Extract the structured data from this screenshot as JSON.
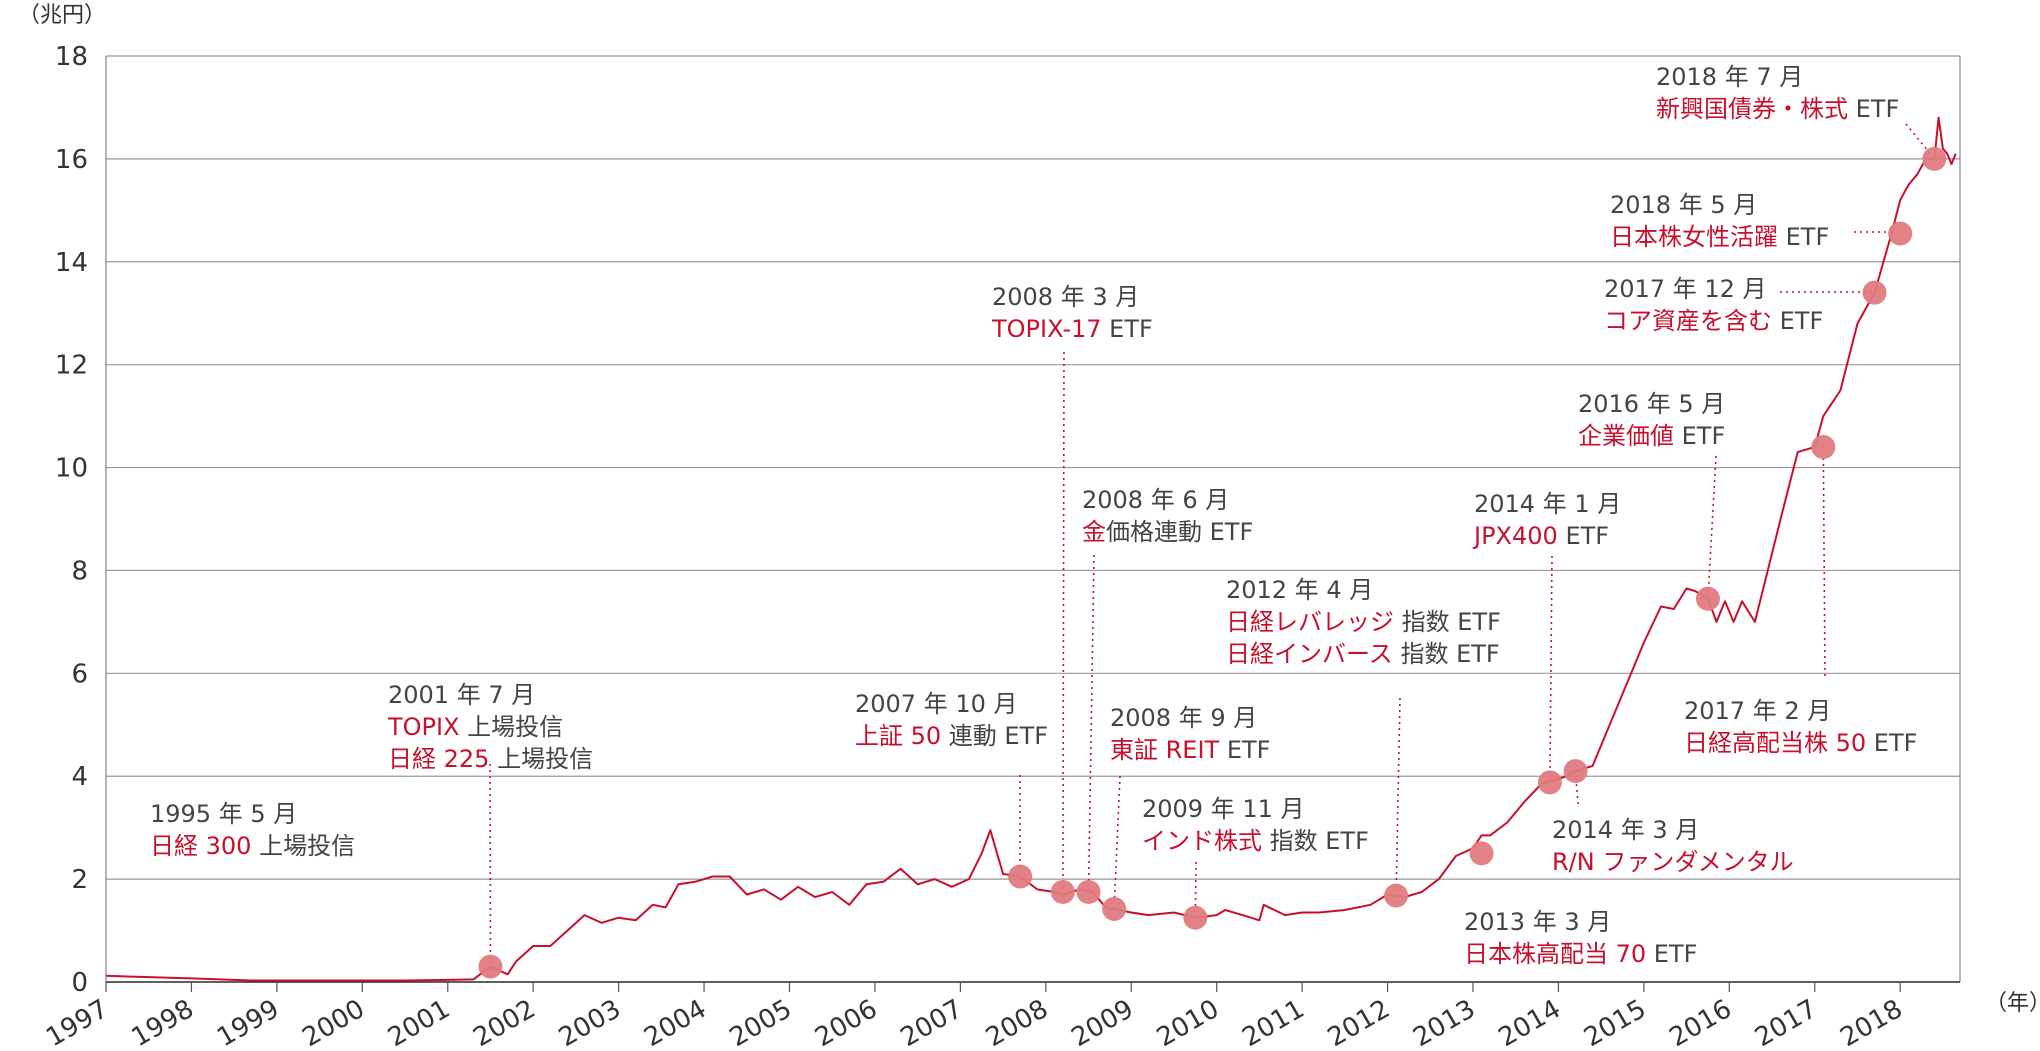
{
  "chart_data": {
    "type": "line",
    "y_unit": "（兆円）",
    "x_unit": "（年）",
    "ylim": [
      0,
      18
    ],
    "yticks": [
      0,
      2,
      4,
      6,
      8,
      10,
      12,
      14,
      16,
      18
    ],
    "xlim": [
      1997,
      2018.7
    ],
    "xticks": [
      "1997",
      "1998",
      "1999",
      "2000",
      "2001",
      "2002",
      "2003",
      "2004",
      "2005",
      "2006",
      "2007",
      "2008",
      "2009",
      "2010",
      "2011",
      "2012",
      "2013",
      "2014",
      "2015",
      "2016",
      "2017",
      "2018"
    ],
    "grid": "horizontal",
    "colors": {
      "line": "#c8102e",
      "marker": "#e07a80",
      "accent": "#c8102e",
      "text": "#444444",
      "grid": "#999999"
    },
    "series": [
      {
        "x": [
          1997.0,
          1998.0,
          1998.7,
          1999.5,
          2000.5,
          2001.0,
          2001.3,
          2001.5,
          2001.7,
          2001.8,
          2002.0,
          2002.2,
          2002.4,
          2002.6,
          2002.8,
          2003.0,
          2003.2,
          2003.4,
          2003.55,
          2003.7,
          2003.9,
          2004.1,
          2004.3,
          2004.5,
          2004.7,
          2004.9,
          2005.1,
          2005.3,
          2005.5,
          2005.7,
          2005.9,
          2006.1,
          2006.3,
          2006.5,
          2006.7,
          2006.9,
          2007.1,
          2007.25,
          2007.35,
          2007.5,
          2007.7,
          2007.9,
          2008.1,
          2008.2,
          2008.4,
          2008.55,
          2008.7,
          2008.85,
          2009.0,
          2009.2,
          2009.5,
          2009.75,
          2010.0,
          2010.1,
          2010.3,
          2010.5,
          2010.55,
          2010.8,
          2011.0,
          2011.2,
          2011.5,
          2011.8,
          2012.0,
          2012.2,
          2012.4,
          2012.6,
          2012.8,
          2013.0,
          2013.1,
          2013.2,
          2013.4,
          2013.6,
          2013.8,
          2013.9,
          2014.1,
          2014.2,
          2014.4,
          2014.6,
          2014.8,
          2015.0,
          2015.2,
          2015.35,
          2015.5,
          2015.6,
          2015.75,
          2015.85,
          2015.95,
          2016.05,
          2016.15,
          2016.3,
          2016.45,
          2016.6,
          2016.8,
          2017.0,
          2017.1,
          2017.3,
          2017.5,
          2017.7,
          2017.9,
          2018.0,
          2018.1,
          2018.2,
          2018.3,
          2018.4,
          2018.45,
          2018.5,
          2018.55,
          2018.6,
          2018.65
        ],
        "y": [
          0.12,
          0.07,
          0.03,
          0.03,
          0.03,
          0.04,
          0.05,
          0.3,
          0.15,
          0.4,
          0.7,
          0.7,
          1.0,
          1.3,
          1.15,
          1.25,
          1.2,
          1.5,
          1.45,
          1.9,
          1.95,
          2.05,
          2.05,
          1.7,
          1.8,
          1.6,
          1.85,
          1.65,
          1.75,
          1.5,
          1.9,
          1.95,
          2.2,
          1.9,
          2.0,
          1.85,
          2.0,
          2.5,
          2.95,
          2.1,
          2.05,
          1.8,
          1.75,
          1.7,
          1.8,
          1.75,
          1.45,
          1.4,
          1.35,
          1.3,
          1.35,
          1.25,
          1.3,
          1.4,
          1.3,
          1.2,
          1.5,
          1.3,
          1.35,
          1.35,
          1.4,
          1.5,
          1.7,
          1.65,
          1.75,
          2.0,
          2.45,
          2.6,
          2.85,
          2.85,
          3.1,
          3.5,
          3.85,
          3.9,
          4.0,
          4.1,
          4.2,
          5.0,
          5.8,
          6.6,
          7.3,
          7.25,
          7.65,
          7.6,
          7.45,
          7.0,
          7.4,
          7.0,
          7.4,
          7.0,
          8.0,
          9.0,
          10.3,
          10.4,
          11.0,
          11.5,
          12.8,
          13.4,
          14.55,
          15.2,
          15.5,
          15.7,
          16.0,
          16.0,
          16.8,
          16.2,
          16.1,
          15.9,
          16.1
        ]
      }
    ],
    "markers": [
      {
        "x": 2001.5,
        "y": 0.3
      },
      {
        "x": 2007.7,
        "y": 2.05
      },
      {
        "x": 2008.2,
        "y": 1.75
      },
      {
        "x": 2008.5,
        "y": 1.75
      },
      {
        "x": 2008.8,
        "y": 1.42
      },
      {
        "x": 2009.75,
        "y": 1.25
      },
      {
        "x": 2012.1,
        "y": 1.68
      },
      {
        "x": 2013.1,
        "y": 2.5
      },
      {
        "x": 2013.9,
        "y": 3.88
      },
      {
        "x": 2014.2,
        "y": 4.1
      },
      {
        "x": 2015.75,
        "y": 7.45
      },
      {
        "x": 2017.1,
        "y": 10.4
      },
      {
        "x": 2017.7,
        "y": 13.4
      },
      {
        "x": 2018.0,
        "y": 14.55
      },
      {
        "x": 2018.4,
        "y": 16.0
      }
    ],
    "annotations": [
      {
        "date": "1995 年 5 月",
        "lines": [
          [
            {
              "t": "日経 300",
              "red": true
            },
            {
              "t": " 上場投信",
              "red": false
            }
          ]
        ]
      },
      {
        "date": "2001 年 7 月",
        "lines": [
          [
            {
              "t": "TOPIX",
              "red": true
            },
            {
              "t": " 上場投信",
              "red": false
            }
          ],
          [
            {
              "t": "日経 225",
              "red": true
            },
            {
              "t": " 上場投信",
              "red": false
            }
          ]
        ]
      },
      {
        "date": "2007 年 10 月",
        "lines": [
          [
            {
              "t": "上証 50",
              "red": true
            },
            {
              "t": " 連動 ETF",
              "red": false
            }
          ]
        ]
      },
      {
        "date": "2008 年 3 月",
        "lines": [
          [
            {
              "t": "TOPIX-17",
              "red": true
            },
            {
              "t": " ETF",
              "red": false
            }
          ]
        ]
      },
      {
        "date": "2008 年 6 月",
        "lines": [
          [
            {
              "t": "金",
              "red": true
            },
            {
              "t": "価格連動 ETF",
              "red": false
            }
          ]
        ]
      },
      {
        "date": "2008 年 9 月",
        "lines": [
          [
            {
              "t": "東証 REIT",
              "red": true
            },
            {
              "t": " ETF",
              "red": false
            }
          ]
        ]
      },
      {
        "date": "2009 年 11 月",
        "lines": [
          [
            {
              "t": "インド株式",
              "red": true
            },
            {
              "t": " 指数 ETF",
              "red": false
            }
          ]
        ]
      },
      {
        "date": "2012 年 4 月",
        "lines": [
          [
            {
              "t": "日経レバレッジ",
              "red": true
            },
            {
              "t": " 指数 ETF",
              "red": false
            }
          ],
          [
            {
              "t": "日経インバース",
              "red": true
            },
            {
              "t": " 指数 ETF",
              "red": false
            }
          ]
        ]
      },
      {
        "date": "2013 年 3 月",
        "lines": [
          [
            {
              "t": "日本株高配当 70",
              "red": true
            },
            {
              "t": " ETF",
              "red": false
            }
          ]
        ]
      },
      {
        "date": "2014 年 1 月",
        "lines": [
          [
            {
              "t": "JPX400",
              "red": true
            },
            {
              "t": " ETF",
              "red": false
            }
          ]
        ]
      },
      {
        "date": "2014 年 3 月",
        "lines": [
          [
            {
              "t": "R/N ファンダメンタル",
              "red": true
            }
          ]
        ]
      },
      {
        "date": "2016 年 5 月",
        "lines": [
          [
            {
              "t": "企業価値",
              "red": true
            },
            {
              "t": " ETF",
              "red": false
            }
          ]
        ]
      },
      {
        "date": "2017 年 2 月",
        "lines": [
          [
            {
              "t": "日経高配当株 50",
              "red": true
            },
            {
              "t": " ETF",
              "red": false
            }
          ]
        ]
      },
      {
        "date": "2017 年 12 月",
        "lines": [
          [
            {
              "t": "コア資産を含む",
              "red": true
            },
            {
              "t": " ETF",
              "red": false
            }
          ]
        ]
      },
      {
        "date": "2018 年 5 月",
        "lines": [
          [
            {
              "t": "日本株女性活躍",
              "red": true
            },
            {
              "t": " ETF",
              "red": false
            }
          ]
        ]
      },
      {
        "date": "2018 年 7 月",
        "lines": [
          [
            {
              "t": "新興国債券・株式",
              "red": true
            },
            {
              "t": " ETF",
              "red": false
            }
          ]
        ]
      }
    ]
  }
}
